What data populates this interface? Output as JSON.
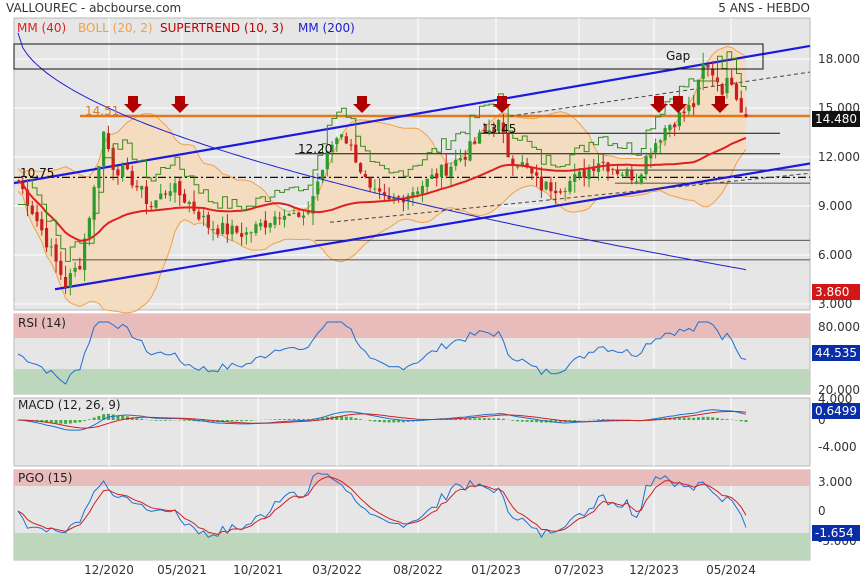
{
  "header": {
    "symbol": "VALLOUREC - abcbourse.com",
    "period": "5 ANS - HEBDO"
  },
  "colors": {
    "background": "#e6e6e6",
    "panel_border": "#b8b8b8",
    "grid": "#ffffff",
    "mm40": "#e02020",
    "boll": "#f2a04a",
    "boll_fill": "#f5d9b8",
    "supertrend": "#c00000",
    "mm200": "#2020d0",
    "trend_line": "#1a1ae0",
    "resistance_orange": "#e0781e",
    "up_candle": "#2e9a2e",
    "down_candle": "#c81e1e",
    "arrow": "#b00000",
    "price_label_bg": "#111111",
    "red_label_bg": "#d01818",
    "blue_label_bg": "#0a2ea8",
    "overbought": "#e9bcbc",
    "oversold": "#bcd7bc",
    "rsi_line": "#1f6fd0",
    "macd_line": "#1f6fd0",
    "macd_signal": "#d02020",
    "macd_hist": "#44aa44",
    "pgo_line": "#1f6fd0",
    "pgo_signal": "#d02020"
  },
  "legend": {
    "mm40": "MM (40)",
    "boll": "BOLL (20, 2)",
    "supertrend": "SUPERTREND (10, 3)",
    "mm200": "MM (200)"
  },
  "annotations": {
    "gap": "Gap",
    "l1451": "14.51",
    "l1345": "13.45",
    "l1220": "12.20",
    "l1075": "10.75"
  },
  "last_values": {
    "price": "14.480",
    "mm200": "3.860",
    "rsi": "44.535",
    "macd": "0.6499",
    "pgo": "-1.654"
  },
  "subpanels": {
    "rsi_title": "RSI (14)",
    "macd_title": "MACD (12, 26, 9)",
    "pgo_title": "PGO (15)"
  },
  "chart_data": [
    {
      "type": "candlestick",
      "title": "VALLOUREC",
      "x_ticks": [
        "12/2020",
        "05/2021",
        "10/2021",
        "03/2022",
        "08/2022",
        "01/2023",
        "07/2023",
        "12/2023",
        "05/2024"
      ],
      "y_ticks": [
        "18.000",
        "15.000",
        "12.000",
        "9.000",
        "6.000",
        "3.000"
      ],
      "ylim": [
        2.3,
        19.8
      ],
      "close_series_points": [
        [
          0,
          10.6
        ],
        [
          5,
          7.5
        ],
        [
          10,
          4.2
        ],
        [
          13,
          5.5
        ],
        [
          16,
          10.0
        ],
        [
          18,
          13.5
        ],
        [
          20,
          11.5
        ],
        [
          24,
          10.6
        ],
        [
          28,
          9.0
        ],
        [
          32,
          10.2
        ],
        [
          36,
          9.2
        ],
        [
          40,
          7.8
        ],
        [
          44,
          7.5
        ],
        [
          48,
          7.3
        ],
        [
          52,
          8.0
        ],
        [
          56,
          8.8
        ],
        [
          60,
          8.0
        ],
        [
          63,
          10.5
        ],
        [
          66,
          12.8
        ],
        [
          68,
          13.6
        ],
        [
          71,
          12.0
        ],
        [
          74,
          9.8
        ],
        [
          78,
          9.2
        ],
        [
          82,
          9.8
        ],
        [
          86,
          10.5
        ],
        [
          90,
          11.3
        ],
        [
          94,
          12.2
        ],
        [
          98,
          13.5
        ],
        [
          101,
          14.0
        ],
        [
          103,
          12.2
        ],
        [
          106,
          11.5
        ],
        [
          110,
          10.2
        ],
        [
          114,
          10.2
        ],
        [
          118,
          10.8
        ],
        [
          122,
          11.8
        ],
        [
          126,
          11.2
        ],
        [
          130,
          10.8
        ],
        [
          133,
          12.5
        ],
        [
          136,
          13.8
        ],
        [
          139,
          14.5
        ],
        [
          142,
          15.2
        ],
        [
          144,
          17.5
        ],
        [
          146,
          17.2
        ],
        [
          148,
          16.2
        ],
        [
          150,
          16.8
        ],
        [
          152,
          15.0
        ],
        [
          153,
          14.48
        ]
      ],
      "mm200_last": 3.86,
      "levels": [
        14.51,
        13.45,
        12.2,
        10.75
      ],
      "gap_zone": [
        16.8,
        18.6
      ]
    },
    {
      "type": "line",
      "title": "RSI (14)",
      "y_ticks": [
        "80.000",
        "20.000"
      ],
      "last": 44.535
    },
    {
      "type": "line",
      "title": "MACD (12, 26, 9)",
      "y_ticks": [
        "4.000",
        "0",
        "-4.000"
      ],
      "last": 0.6499
    },
    {
      "type": "line",
      "title": "PGO (15)",
      "y_ticks": [
        "3.000",
        "0",
        "-3.000"
      ],
      "last": -1.654
    }
  ]
}
